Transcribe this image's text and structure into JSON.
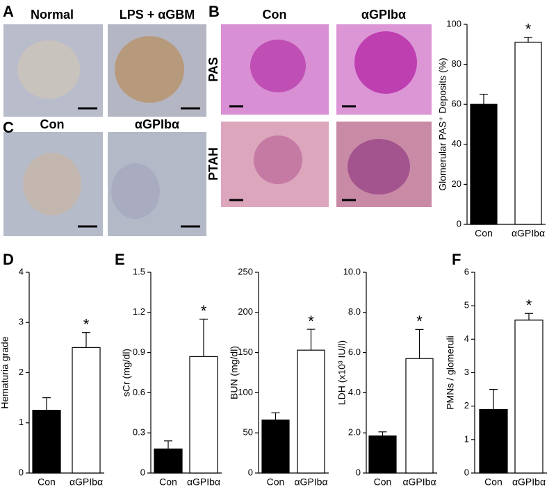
{
  "panel_labels": [
    "A",
    "B",
    "C",
    "D",
    "E",
    "F"
  ],
  "images": {
    "A": [
      "Normal",
      "LPS + αGBM"
    ],
    "B": {
      "columns": [
        "Con",
        "αGPIbα"
      ],
      "rows": [
        "PAS",
        "PTAH"
      ]
    },
    "C": [
      "Con",
      "αGPIbα"
    ]
  },
  "chart_data": [
    {
      "type": "bar",
      "ylabel": "Glomerular PAS⁺ Deposits (%)",
      "categories": [
        "Con",
        "αGPIbα"
      ],
      "values": [
        60,
        91
      ],
      "errors": [
        5,
        2.5
      ],
      "colors": [
        "#000000",
        "#ffffff"
      ],
      "ylim": [
        0,
        100
      ],
      "yticks": [
        0,
        20,
        40,
        60,
        80,
        100
      ],
      "annotation": "*"
    },
    {
      "type": "bar",
      "ylabel": "Hematuria grade",
      "categories": [
        "Con",
        "αGPIbα"
      ],
      "values": [
        1.25,
        2.5
      ],
      "errors": [
        0.25,
        0.3
      ],
      "colors": [
        "#000000",
        "#ffffff"
      ],
      "ylim": [
        0,
        4
      ],
      "yticks": [
        0,
        1,
        2,
        3,
        4
      ],
      "annotation": "*"
    },
    {
      "type": "bar",
      "ylabel": "sCr (mg/dl)",
      "categories": [
        "Con",
        "αGPIbα"
      ],
      "values": [
        0.18,
        0.87
      ],
      "errors": [
        0.06,
        0.28
      ],
      "colors": [
        "#000000",
        "#ffffff"
      ],
      "ylim": [
        0,
        1.5
      ],
      "yticks": [
        0,
        0.3,
        0.6,
        0.9,
        1.2,
        1.5
      ],
      "annotation": "*"
    },
    {
      "type": "bar",
      "ylabel": "BUN (mg/dl)",
      "categories": [
        "Con",
        "αGPIbα"
      ],
      "values": [
        66,
        153
      ],
      "errors": [
        9,
        26
      ],
      "colors": [
        "#000000",
        "#ffffff"
      ],
      "ylim": [
        0,
        250
      ],
      "yticks": [
        0,
        50,
        100,
        150,
        200,
        250
      ],
      "annotation": "*"
    },
    {
      "type": "bar",
      "ylabel": "LDH (x10³ IU/l)",
      "categories": [
        "Con",
        "αGPIbα"
      ],
      "values": [
        1.85,
        5.7
      ],
      "errors": [
        0.2,
        1.45
      ],
      "colors": [
        "#000000",
        "#ffffff"
      ],
      "ylim": [
        0,
        10
      ],
      "yticks": [
        0,
        {
          "value": 2,
          "label": "2.0"
        },
        {
          "value": 4,
          "label": "4.0"
        },
        {
          "value": 6,
          "label": "6.0"
        },
        {
          "value": 8,
          "label": "8.0"
        },
        {
          "value": 10,
          "label": "10.0"
        }
      ],
      "annotation": "*"
    },
    {
      "type": "bar",
      "ylabel": "PMNs / glomeruli",
      "categories": [
        "Con",
        "αGPIbα"
      ],
      "values": [
        1.9,
        4.57
      ],
      "errors": [
        0.6,
        0.2
      ],
      "colors": [
        "#000000",
        "#ffffff"
      ],
      "ylim": [
        0,
        6
      ],
      "yticks": [
        0,
        1,
        2,
        3,
        4,
        5,
        6
      ],
      "annotation": "*"
    }
  ]
}
